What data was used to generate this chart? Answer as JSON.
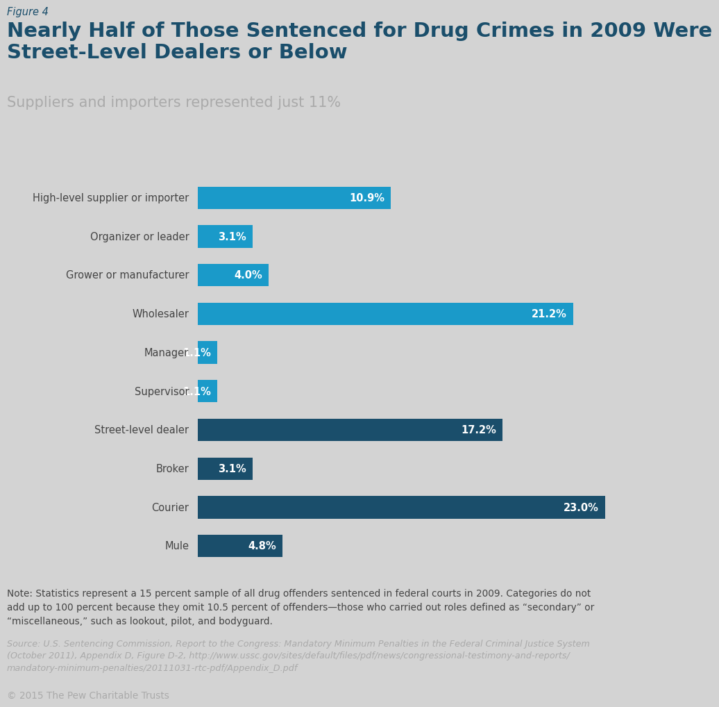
{
  "figure_label": "Figure 4",
  "title": "Nearly Half of Those Sentenced for Drug Crimes in 2009 Were\nStreet-Level Dealers or Below",
  "subtitle": "Suppliers and importers represented just 11%",
  "background_color": "#d3d3d3",
  "categories": [
    "High-level supplier or importer",
    "Organizer or leader",
    "Grower or manufacturer",
    "Wholesaler",
    "Manager",
    "Supervisor",
    "Street-level dealer",
    "Broker",
    "Courier",
    "Mule"
  ],
  "values": [
    10.9,
    3.1,
    4.0,
    21.2,
    1.1,
    1.1,
    17.2,
    3.1,
    23.0,
    4.8
  ],
  "bar_colors": [
    "#1a9ac9",
    "#1a9ac9",
    "#1a9ac9",
    "#1a9ac9",
    "#1a9ac9",
    "#1a9ac9",
    "#1a4e6b",
    "#1a4e6b",
    "#1a4e6b",
    "#1a4e6b"
  ],
  "label_texts": [
    "10.9%",
    "3.1%",
    "4.0%",
    "21.2%",
    "1.1%",
    "1.1%",
    "17.2%",
    "3.1%",
    "23.0%",
    "4.8%"
  ],
  "note_text": "Note: Statistics represent a 15 percent sample of all drug offenders sentenced in federal courts in 2009. Categories do not\nadd up to 100 percent because they omit 10.5 percent of offenders—those who carried out roles defined as “secondary” or\n“miscellaneous,” such as lookout, pilot, and bodyguard.",
  "source_text_normal": "Source: U.S. Sentencing Commission, ",
  "source_text_italic": "Report to the Congress: Mandatory Minimum Penalties in the Federal Criminal Justice System",
  "source_text_rest": "\n(October 2011), Appendix D, Figure D-2, http://www.ussc.gov/sites/default/files/pdf/news/congressional-testimony-and-reports/\nmandatory-minimum-penalties/20111031-rtc-pdf/Appendix_D.pdf",
  "source_full": "Source: U.S. Sentencing Commission, Report to the Congress: Mandatory Minimum Penalties in the Federal Criminal Justice System\n(October 2011), Appendix D, Figure D-2, http://www.ussc.gov/sites/default/files/pdf/news/congressional-testimony-and-reports/\nmandatory-minimum-penalties/20111031-rtc-pdf/Appendix_D.pdf",
  "copyright_text": "© 2015 The Pew Charitable Trusts",
  "title_color": "#1a4e6b",
  "figure_label_color": "#1a4e6b",
  "subtitle_color": "#aaaaaa",
  "label_color": "#ffffff",
  "category_label_color": "#444444",
  "note_color": "#444444",
  "source_color": "#aaaaaa",
  "copyright_color": "#aaaaaa",
  "xlim": [
    0,
    25.5
  ],
  "bar_height": 0.58
}
